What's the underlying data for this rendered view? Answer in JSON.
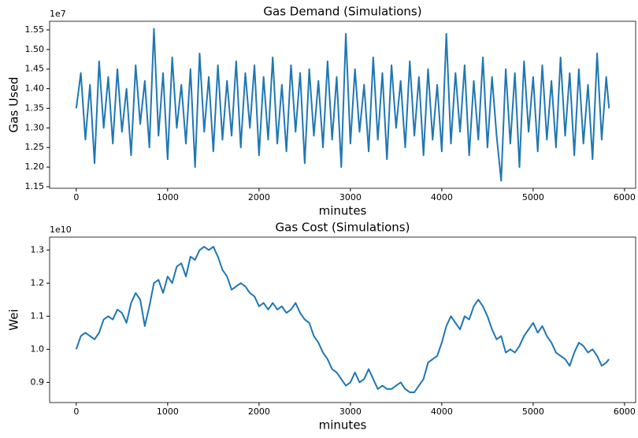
{
  "chart_data": [
    {
      "type": "line",
      "title": "Gas Demand (Simulations)",
      "x_label": "minutes",
      "y_label": "Gas Used",
      "y_offset_label": "1e7",
      "color": "#1f77b4",
      "x": [
        0,
        50,
        100,
        150,
        200,
        250,
        300,
        350,
        400,
        450,
        500,
        550,
        600,
        650,
        700,
        750,
        800,
        850,
        900,
        950,
        1000,
        1050,
        1100,
        1150,
        1200,
        1250,
        1300,
        1350,
        1400,
        1450,
        1500,
        1550,
        1600,
        1650,
        1700,
        1750,
        1800,
        1850,
        1900,
        1950,
        2000,
        2050,
        2100,
        2150,
        2200,
        2250,
        2300,
        2350,
        2400,
        2450,
        2500,
        2550,
        2600,
        2650,
        2700,
        2750,
        2800,
        2850,
        2900,
        2950,
        3000,
        3050,
        3100,
        3150,
        3200,
        3250,
        3300,
        3350,
        3400,
        3450,
        3500,
        3550,
        3600,
        3650,
        3700,
        3750,
        3800,
        3850,
        3900,
        3950,
        4000,
        4050,
        4100,
        4150,
        4200,
        4250,
        4300,
        4350,
        4400,
        4450,
        4500,
        4550,
        4600,
        4650,
        4700,
        4750,
        4800,
        4850,
        4900,
        4950,
        5000,
        5050,
        5100,
        5150,
        5200,
        5250,
        5300,
        5350,
        5400,
        5450,
        5500,
        5550,
        5600,
        5650,
        5700,
        5750,
        5800,
        5830
      ],
      "values": [
        1.35,
        1.44,
        1.27,
        1.41,
        1.21,
        1.47,
        1.3,
        1.43,
        1.26,
        1.45,
        1.29,
        1.4,
        1.23,
        1.46,
        1.31,
        1.42,
        1.25,
        1.553,
        1.28,
        1.44,
        1.22,
        1.48,
        1.3,
        1.41,
        1.26,
        1.45,
        1.2,
        1.49,
        1.29,
        1.43,
        1.24,
        1.46,
        1.27,
        1.42,
        1.28,
        1.47,
        1.25,
        1.44,
        1.3,
        1.46,
        1.23,
        1.43,
        1.27,
        1.48,
        1.26,
        1.41,
        1.24,
        1.46,
        1.29,
        1.44,
        1.21,
        1.45,
        1.28,
        1.42,
        1.25,
        1.47,
        1.27,
        1.43,
        1.2,
        1.54,
        1.26,
        1.45,
        1.29,
        1.41,
        1.24,
        1.48,
        1.27,
        1.44,
        1.22,
        1.46,
        1.3,
        1.42,
        1.25,
        1.47,
        1.28,
        1.43,
        1.23,
        1.45,
        1.27,
        1.41,
        1.24,
        1.54,
        1.26,
        1.44,
        1.29,
        1.46,
        1.23,
        1.42,
        1.27,
        1.48,
        1.25,
        1.43,
        1.28,
        1.165,
        1.45,
        1.26,
        1.44,
        1.2,
        1.47,
        1.29,
        1.43,
        1.24,
        1.46,
        1.27,
        1.42,
        1.25,
        1.48,
        1.28,
        1.44,
        1.23,
        1.45,
        1.26,
        1.41,
        1.22,
        1.49,
        1.27,
        1.43,
        1.35
      ],
      "xlim": [
        -291.5,
        6121.5
      ],
      "xticks": [
        0,
        1000,
        2000,
        3000,
        4000,
        5000,
        6000
      ],
      "ylim": [
        1.146,
        1.572
      ],
      "yticks": [
        1.15,
        {
          "value": 1.2,
          "label": "1.20"
        },
        1.25,
        {
          "value": 1.3,
          "label": "1.30"
        },
        1.35,
        {
          "value": 1.4,
          "label": "1.40"
        },
        1.45,
        {
          "value": 1.5,
          "label": "1.50"
        },
        1.55
      ]
    },
    {
      "type": "line",
      "title": "Gas Cost (Simulations)",
      "x_label": "minutes",
      "y_label": "Wei",
      "y_offset_label": "1e10",
      "color": "#1f77b4",
      "x": [
        0,
        50,
        100,
        150,
        200,
        250,
        300,
        350,
        400,
        450,
        500,
        550,
        600,
        650,
        700,
        750,
        800,
        850,
        900,
        950,
        1000,
        1050,
        1100,
        1150,
        1200,
        1250,
        1300,
        1350,
        1400,
        1450,
        1500,
        1550,
        1600,
        1650,
        1700,
        1750,
        1800,
        1850,
        1900,
        1950,
        2000,
        2050,
        2100,
        2150,
        2200,
        2250,
        2300,
        2350,
        2400,
        2450,
        2500,
        2550,
        2600,
        2650,
        2700,
        2750,
        2800,
        2850,
        2900,
        2950,
        3000,
        3050,
        3100,
        3150,
        3200,
        3250,
        3300,
        3350,
        3400,
        3450,
        3500,
        3550,
        3600,
        3650,
        3700,
        3750,
        3800,
        3850,
        3900,
        3950,
        4000,
        4050,
        4100,
        4150,
        4200,
        4250,
        4300,
        4350,
        4400,
        4450,
        4500,
        4550,
        4600,
        4650,
        4700,
        4750,
        4800,
        4850,
        4900,
        4950,
        5000,
        5050,
        5100,
        5150,
        5200,
        5250,
        5300,
        5350,
        5400,
        5450,
        5500,
        5550,
        5600,
        5650,
        5700,
        5750,
        5800,
        5830
      ],
      "values": [
        1.0,
        1.04,
        1.05,
        1.04,
        1.03,
        1.05,
        1.09,
        1.1,
        1.09,
        1.12,
        1.11,
        1.08,
        1.14,
        1.17,
        1.15,
        1.07,
        1.13,
        1.2,
        1.21,
        1.17,
        1.22,
        1.2,
        1.25,
        1.26,
        1.22,
        1.28,
        1.27,
        1.3,
        1.31,
        1.3,
        1.31,
        1.28,
        1.24,
        1.22,
        1.18,
        1.19,
        1.2,
        1.19,
        1.17,
        1.16,
        1.13,
        1.14,
        1.12,
        1.14,
        1.12,
        1.13,
        1.11,
        1.12,
        1.14,
        1.11,
        1.09,
        1.08,
        1.04,
        1.02,
        0.99,
        0.97,
        0.94,
        0.93,
        0.91,
        0.89,
        0.9,
        0.93,
        0.9,
        0.91,
        0.94,
        0.91,
        0.88,
        0.89,
        0.88,
        0.88,
        0.89,
        0.9,
        0.88,
        0.87,
        0.87,
        0.89,
        0.91,
        0.96,
        0.97,
        0.98,
        1.02,
        1.07,
        1.1,
        1.08,
        1.06,
        1.1,
        1.09,
        1.13,
        1.15,
        1.13,
        1.1,
        1.06,
        1.03,
        1.04,
        0.99,
        1.0,
        0.99,
        1.01,
        1.04,
        1.06,
        1.08,
        1.05,
        1.07,
        1.04,
        1.02,
        0.99,
        0.98,
        0.97,
        0.95,
        0.99,
        1.02,
        1.01,
        0.99,
        1.0,
        0.98,
        0.95,
        0.96,
        0.97
      ],
      "xlim": [
        -291.5,
        6121.5
      ],
      "xticks": [
        0,
        1000,
        2000,
        3000,
        4000,
        5000,
        6000
      ],
      "ylim": [
        0.839,
        1.339
      ],
      "yticks": [
        0.9,
        {
          "value": 1.0,
          "label": "1.0"
        },
        1.1,
        1.2,
        1.3
      ]
    }
  ]
}
